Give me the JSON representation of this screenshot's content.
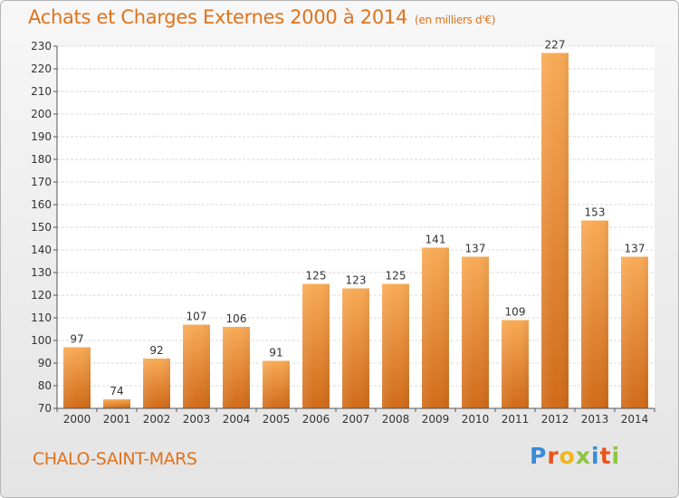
{
  "header": {
    "title": "Achats et Charges Externes 2000 à 2014",
    "subtitle": "(en milliers d'€)"
  },
  "footer": {
    "commune": "CHALO-SAINT-MARS",
    "logo_letters": [
      "P",
      "r",
      "o",
      "x",
      "i",
      "t",
      "i"
    ]
  },
  "colors": {
    "accent": "#e0731c",
    "bar_light": "#f6a54e",
    "bar_dark": "#d4701c"
  },
  "chart_data": {
    "type": "bar",
    "title": "Achats et Charges Externes 2000 à 2014",
    "subtitle": "(en milliers d'€)",
    "categories": [
      "2000",
      "2001",
      "2002",
      "2003",
      "2004",
      "2005",
      "2006",
      "2007",
      "2008",
      "2009",
      "2010",
      "2011",
      "2012",
      "2013",
      "2014"
    ],
    "values": [
      97,
      74,
      92,
      107,
      106,
      91,
      125,
      123,
      125,
      141,
      137,
      109,
      227,
      153,
      137
    ],
    "ylim": [
      70,
      230
    ],
    "yticks": [
      70,
      80,
      90,
      100,
      110,
      120,
      130,
      140,
      150,
      160,
      170,
      180,
      190,
      200,
      210,
      220,
      230
    ],
    "grid": true,
    "data_labels": true
  }
}
